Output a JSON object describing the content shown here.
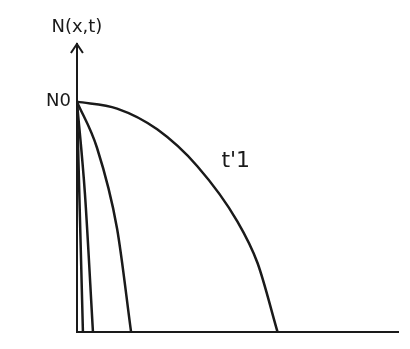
{
  "chart_data": {
    "type": "line",
    "ylabel": "N(x,t)",
    "series": [
      {
        "color": "#1a1a1a",
        "x": [
          0,
          0.2,
          0.4,
          0.6,
          0.8,
          0.9,
          1.0
        ],
        "values": [
          1,
          0.97,
          0.88,
          0.72,
          0.48,
          0.3,
          0
        ]
      },
      {
        "color": "#1a1a1a",
        "x": [
          0,
          0.1,
          0.2,
          0.27
        ],
        "values": [
          1,
          0.8,
          0.45,
          0
        ]
      },
      {
        "color": "#1a1a1a",
        "x": [
          0,
          0.04,
          0.08
        ],
        "values": [
          1,
          0.6,
          0
        ]
      },
      {
        "color": "#1a1a1a",
        "x": [
          0,
          0.015,
          0.03
        ],
        "values": [
          1,
          0.5,
          0
        ]
      }
    ],
    "xlim": [
      0,
      1.6
    ],
    "ylim": [
      0,
      1.25
    ],
    "yticks": [
      {
        "value": 1,
        "label": "N0"
      }
    ],
    "annotations": [
      {
        "text": "t'1",
        "x": 0.72,
        "y": 0.74
      }
    ],
    "grid": false,
    "tick_labels": "y"
  }
}
